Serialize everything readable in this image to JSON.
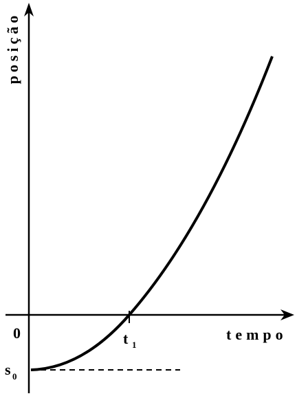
{
  "y_axis_label": "posição",
  "x_axis_label": "tempo",
  "origin_label": "0",
  "t1_label": {
    "main": "t",
    "sub": "1"
  },
  "s0_label": {
    "main": "s",
    "sub": "0"
  }
}
